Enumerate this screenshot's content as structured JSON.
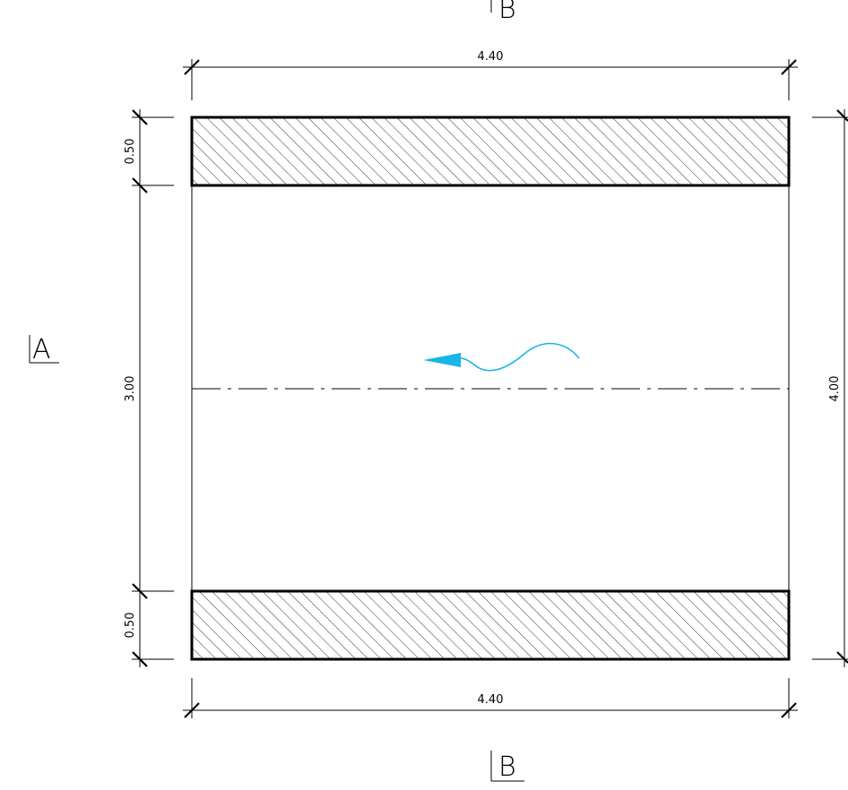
{
  "colors": {
    "line": "#000000",
    "flow_arrow": "#19b4e8",
    "background": "#ffffff"
  },
  "dimensions": {
    "top_width": "4.40",
    "bottom_width": "4.40",
    "top_slab": "0.50",
    "clear_height": "3.00",
    "bottom_slab": "0.50",
    "total_height": "4.00"
  },
  "section_markers": {
    "left": "A",
    "top": "B",
    "bottom": "B"
  },
  "icons": {
    "flow": "flow-direction-arrow-icon",
    "hatch": "diagonal-hatch-pattern"
  }
}
